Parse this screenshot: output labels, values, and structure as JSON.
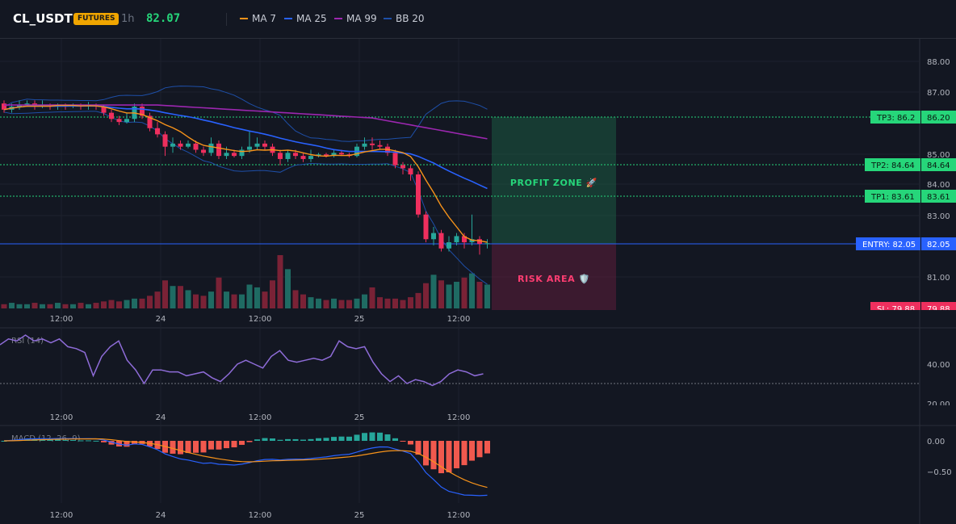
{
  "header": {
    "symbol": "CL_USDT",
    "badge": "FUTURES",
    "interval": "1h",
    "price": "82.07"
  },
  "legend": [
    {
      "label": "MA 7",
      "color": "#f7931a"
    },
    {
      "label": "MA 25",
      "color": "#2962ff"
    },
    {
      "label": "MA 99",
      "color": "#9c27b0"
    },
    {
      "label": "BB 20",
      "color": "#1e4fa8"
    }
  ],
  "colors": {
    "up": "#26a69a",
    "down": "#ef2f5e",
    "ma7": "#f7931a",
    "ma25": "#2962ff",
    "ma99": "#9c27b0",
    "bb": "#1e4fa8",
    "tp": "#26d67a",
    "entry": "#2962ff",
    "sl": "#ef2f5e",
    "rsi": "#8e6cd8",
    "macd": "#2962ff",
    "signal": "#f7931a"
  },
  "price_axis_labels": [
    "88.00",
    "87.00",
    "85.00",
    "84.00",
    "83.00",
    "81.00"
  ],
  "time_labels": [
    "12:00",
    "24",
    "12:00",
    "25",
    "12:00"
  ],
  "levels": {
    "tp3": {
      "label": "TP3: 86.2",
      "value_label": "86.20",
      "value": 86.2
    },
    "tp2": {
      "label": "TP2: 84.64",
      "value_label": "84.64",
      "value": 84.64
    },
    "tp1": {
      "label": "TP1: 83.61",
      "value_label": "83.61",
      "value": 83.61
    },
    "entry": {
      "label": "ENTRY: 82.05",
      "value_label": "82.05",
      "value": 82.05
    },
    "sl": {
      "label": "SL: 79.88",
      "value_label": "79.88",
      "value": 79.88
    }
  },
  "zones": {
    "profit_label": "PROFIT ZONE 🚀",
    "risk_label": "RISK AREA 🛡️"
  },
  "rsi": {
    "title": "RSI (14)",
    "axis_labels": [
      "40.00",
      "20.00"
    ],
    "level": 30,
    "values": [
      50,
      53,
      52,
      55,
      52,
      53,
      51,
      53,
      49,
      48,
      46,
      34,
      44,
      49,
      52,
      42,
      37,
      30,
      37,
      37,
      36,
      36,
      34,
      35,
      36,
      33,
      31,
      35,
      40,
      42,
      40,
      38,
      44,
      47,
      42,
      41,
      42,
      43,
      42,
      44,
      52,
      49,
      48,
      49,
      41,
      35,
      31,
      34,
      30,
      32,
      31,
      29,
      31,
      35,
      37,
      36,
      34,
      35
    ]
  },
  "macd": {
    "title": "MACD (12, 26, 9)",
    "axis_labels": [
      "0.00",
      "−0.50"
    ]
  },
  "chart_data": {
    "type": "candlestick",
    "y_range": [
      79.88,
      88.6
    ],
    "candles": [
      [
        86.6,
        86.4,
        86.7,
        86.3
      ],
      [
        86.4,
        86.5,
        86.6,
        86.3
      ],
      [
        86.5,
        86.55,
        86.7,
        86.4
      ],
      [
        86.55,
        86.6,
        86.7,
        86.5
      ],
      [
        86.6,
        86.5,
        86.7,
        86.4
      ],
      [
        86.5,
        86.55,
        86.7,
        86.45
      ],
      [
        86.55,
        86.5,
        86.6,
        86.4
      ],
      [
        86.5,
        86.55,
        86.6,
        86.4
      ],
      [
        86.55,
        86.5,
        86.6,
        86.4
      ],
      [
        86.5,
        86.55,
        86.6,
        86.45
      ],
      [
        86.55,
        86.5,
        86.6,
        86.4
      ],
      [
        86.5,
        86.55,
        86.65,
        86.4
      ],
      [
        86.55,
        86.5,
        86.6,
        86.4
      ],
      [
        86.5,
        86.3,
        86.55,
        86.2
      ],
      [
        86.3,
        86.1,
        86.4,
        86.0
      ],
      [
        86.1,
        86.0,
        86.2,
        85.9
      ],
      [
        86.0,
        86.1,
        86.3,
        85.95
      ],
      [
        86.1,
        86.5,
        86.6,
        86.0
      ],
      [
        86.5,
        86.2,
        86.6,
        86.1
      ],
      [
        86.2,
        85.8,
        86.3,
        85.7
      ],
      [
        85.8,
        85.6,
        86.0,
        85.5
      ],
      [
        85.6,
        85.2,
        85.7,
        84.9
      ],
      [
        85.2,
        85.3,
        85.5,
        85.0
      ],
      [
        85.3,
        85.2,
        85.4,
        85.1
      ],
      [
        85.2,
        85.3,
        85.4,
        85.15
      ],
      [
        85.3,
        85.1,
        85.4,
        85.0
      ],
      [
        85.1,
        85.0,
        85.2,
        84.9
      ],
      [
        85.0,
        85.3,
        85.5,
        84.9
      ],
      [
        85.3,
        84.9,
        85.4,
        84.8
      ],
      [
        84.9,
        85.0,
        85.2,
        84.8
      ],
      [
        85.0,
        84.9,
        85.1,
        84.85
      ],
      [
        84.9,
        85.1,
        85.2,
        84.8
      ],
      [
        85.1,
        85.2,
        85.7,
        85.0
      ],
      [
        85.2,
        85.3,
        85.5,
        85.1
      ],
      [
        85.3,
        85.2,
        85.4,
        85.1
      ],
      [
        85.2,
        85.0,
        85.3,
        84.9
      ],
      [
        85.0,
        84.8,
        85.1,
        84.6
      ],
      [
        84.8,
        85.0,
        85.1,
        84.7
      ],
      [
        85.0,
        84.9,
        85.1,
        84.8
      ],
      [
        84.9,
        84.8,
        85.0,
        84.7
      ],
      [
        84.8,
        84.9,
        85.1,
        84.7
      ],
      [
        84.9,
        84.95,
        85.0,
        84.85
      ],
      [
        84.95,
        84.9,
        85.0,
        84.85
      ],
      [
        84.9,
        85.0,
        85.1,
        84.85
      ],
      [
        85.0,
        84.95,
        85.1,
        84.9
      ],
      [
        84.95,
        84.9,
        85.0,
        84.85
      ],
      [
        84.9,
        85.2,
        85.3,
        84.85
      ],
      [
        85.2,
        85.3,
        85.5,
        85.1
      ],
      [
        85.3,
        85.25,
        85.5,
        85.1
      ],
      [
        85.25,
        85.2,
        85.4,
        85.1
      ],
      [
        85.2,
        85.0,
        85.3,
        84.9
      ],
      [
        85.0,
        84.6,
        85.1,
        84.5
      ],
      [
        84.6,
        84.5,
        84.7,
        84.3
      ],
      [
        84.5,
        84.3,
        84.6,
        84.1
      ],
      [
        84.3,
        83.0,
        84.4,
        82.9
      ],
      [
        83.0,
        82.2,
        83.1,
        82.1
      ],
      [
        82.2,
        82.4,
        82.6,
        82.0
      ],
      [
        82.4,
        81.9,
        82.5,
        81.8
      ],
      [
        81.9,
        82.1,
        82.3,
        81.8
      ],
      [
        82.1,
        82.3,
        82.4,
        82.0
      ],
      [
        82.3,
        82.1,
        82.4,
        81.9
      ],
      [
        82.1,
        82.2,
        83.0,
        82.0
      ],
      [
        82.2,
        82.05,
        82.3,
        81.7
      ],
      [
        82.05,
        82.07,
        82.2,
        81.9
      ]
    ],
    "volume": [
      3,
      4,
      3,
      3,
      4,
      3,
      3,
      4,
      3,
      3,
      4,
      3,
      4,
      5,
      6,
      5,
      6,
      7,
      7,
      9,
      12,
      20,
      16,
      16,
      13,
      10,
      9,
      12,
      22,
      12,
      10,
      10,
      17,
      15,
      12,
      20,
      38,
      28,
      13,
      10,
      8,
      7,
      6,
      7,
      6,
      6,
      7,
      10,
      15,
      8,
      7,
      7,
      6,
      8,
      11,
      18,
      24,
      20,
      17,
      19,
      22,
      25,
      19,
      17
    ]
  }
}
